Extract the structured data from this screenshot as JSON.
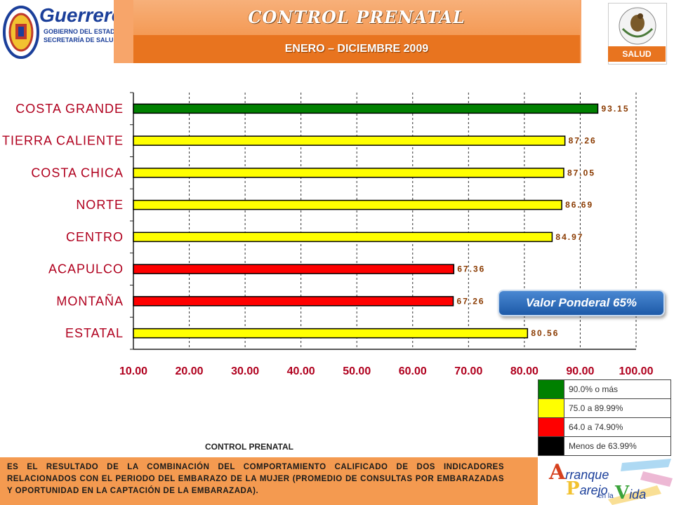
{
  "header": {
    "title": "CONTROL PRENATAL",
    "subtitle": "ENERO – DICIEMBRE 2009",
    "left_logo": {
      "name": "Guerrero",
      "line1": "GOBIERNO DEL ESTADO",
      "line2": "SECRETARÍA DE SALUD"
    },
    "right_logo": {
      "label": "SALUD",
      "seal_text": "ESTADOS UNIDOS MEXICANOS"
    }
  },
  "chart_data": {
    "type": "bar",
    "orientation": "horizontal",
    "categories": [
      "COSTA GRANDE",
      "TIERRA CALIENTE",
      "COSTA CHICA",
      "NORTE",
      "CENTRO",
      "ACAPULCO",
      "MONTAÑA",
      "ESTATAL"
    ],
    "values": [
      93.15,
      87.26,
      87.05,
      86.69,
      84.97,
      67.36,
      67.26,
      80.56
    ],
    "value_labels": [
      "93.15",
      "87.26",
      "87.05",
      "86.69",
      "84.97",
      "67.36",
      "67.26",
      "80.56"
    ],
    "bar_colors": [
      "#008000",
      "#ffff00",
      "#ffff00",
      "#ffff00",
      "#ffff00",
      "#ff0000",
      "#ff0000",
      "#ffff00"
    ],
    "xlim": [
      10,
      100
    ],
    "xticks": [
      "10.00",
      "20.00",
      "30.00",
      "40.00",
      "50.00",
      "60.00",
      "70.00",
      "80.00",
      "90.00",
      "100.00"
    ],
    "grid": "vertical dashed"
  },
  "badge": {
    "text": "Valor Ponderal 65%"
  },
  "legend": [
    {
      "color": "#008000",
      "label": "90.0% o más"
    },
    {
      "color": "#ffff00",
      "label": "75.0 a 89.99%"
    },
    {
      "color": "#ff0000",
      "label": "64.0 a 74.90%"
    },
    {
      "color": "#000000",
      "label": "Menos de 63.99%"
    }
  ],
  "caption": "CONTROL PRENATAL",
  "footer": {
    "text": "ES EL RESULTADO DE LA COMBINACIÓN DEL COMPORTAMIENTO CALIFICADO DE DOS INDICADORES RELACIONADOS CON EL PERIODO DEL EMBARAZO DE LA MUJER (PROMEDIO DE CONSULTAS POR EMBARAZADAS Y OPORTUNIDAD EN LA CAPTACIÓN DE LA EMBARAZADA).",
    "logo": {
      "a": "A",
      "arranque": "rranque",
      "p": "P",
      "arejo": "arejo",
      "en_la": "en la",
      "v": "V",
      "ida": "ida"
    }
  }
}
